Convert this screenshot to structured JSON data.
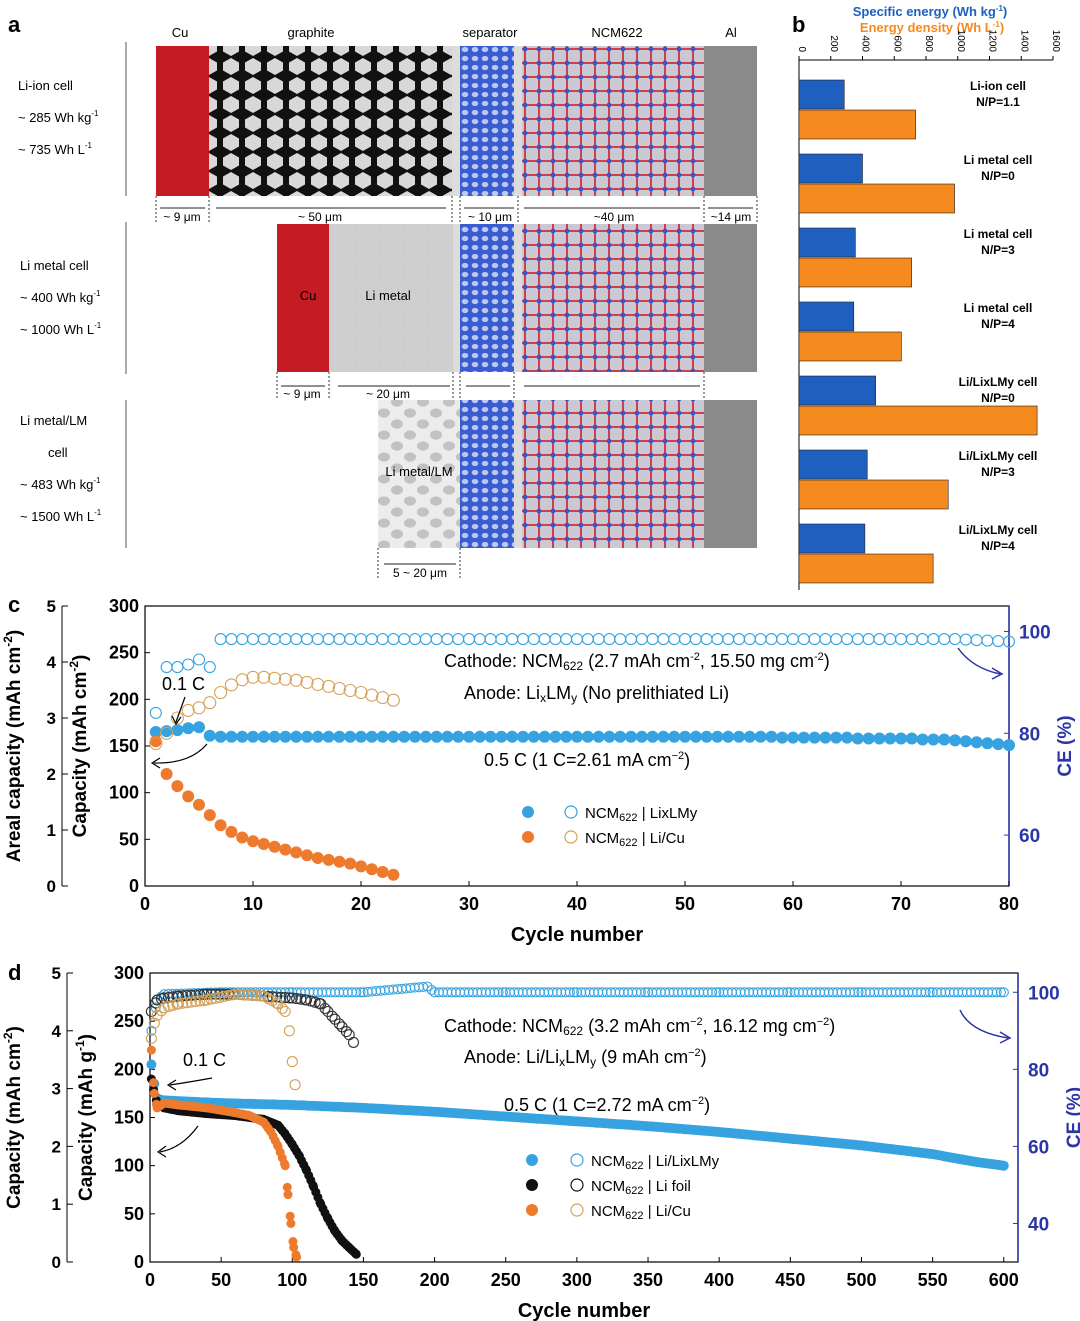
{
  "panels": {
    "a": "a",
    "b": "b",
    "c": "c",
    "d": "d"
  },
  "colors": {
    "blue": "#1f5fbf",
    "orange": "#f58a1f",
    "light_blue": "#36a3e0",
    "c_orange": "#ee7a2e",
    "tan": "#d4a057",
    "black": "#111111",
    "ce_axis": "#2a35a8",
    "cu_red": "#c51b23",
    "al_gray": "#8a8a8a",
    "li_gray": "#cfcfcf"
  },
  "schematic": {
    "layer_labels": {
      "cu": "Cu",
      "graphite": "graphite",
      "separator": "separator",
      "ncm": "NCM622",
      "al": "Al"
    },
    "cells": [
      {
        "name": "Li-ion cell",
        "energy": "~ 285 Wh kg",
        "energy_sup": "-1",
        "density": "~ 735 Wh L",
        "density_sup": "-1"
      },
      {
        "name": "Li metal cell",
        "energy": "~ 400 Wh kg",
        "energy_sup": "-1",
        "density": "~ 1000 Wh L",
        "density_sup": "-1"
      },
      {
        "name": "Li metal/LM",
        "name2": "cell",
        "energy": "~ 483 Wh kg",
        "energy_sup": "-1",
        "density": "~ 1500 Wh L",
        "density_sup": "-1"
      }
    ],
    "dims_row1": [
      "~ 9 μm",
      "~ 50 μm",
      "~ 10 μm",
      "~40 μm",
      "~14 μm"
    ],
    "dims_row2": [
      "~ 9 μm",
      "~ 20 μm"
    ],
    "dims_row3": [
      "5 ~ 20 μm"
    ],
    "inner_labels": {
      "cu": "Cu",
      "li_metal": "Li metal",
      "li_metal_lm": "Li metal/LM"
    }
  },
  "chart_data": [
    {
      "panel": "b",
      "type": "bar",
      "orientation": "horizontal",
      "legend": {
        "specific": "Specific energy (Wh kg",
        "specific_sup": "-1",
        "density": "Energy density (Wh L",
        "density_sup": "-1"
      },
      "ticks": [
        "0",
        "200",
        "400",
        "600",
        "800",
        "1000",
        "1200",
        "1400",
        "1600"
      ],
      "xlim": [
        0,
        1600
      ],
      "categories": [
        {
          "l1": "Li-ion cell",
          "l2": "N/P=1.1"
        },
        {
          "l1": "Li metal cell",
          "l2": "N/P=0"
        },
        {
          "l1": "Li metal cell",
          "l2": "N/P=3"
        },
        {
          "l1": "Li metal cell",
          "l2": "N/P=4"
        },
        {
          "l1": "Li/LixLMy cell",
          "l2": "N/P=0"
        },
        {
          "l1": "Li/LixLMy cell",
          "l2": "N/P=3"
        },
        {
          "l1": "Li/LixLMy cell",
          "l2": "N/P=4"
        }
      ],
      "series": [
        {
          "name": "Specific energy (Wh kg-1)",
          "values": [
            285,
            400,
            355,
            345,
            483,
            430,
            415
          ]
        },
        {
          "name": "Energy density (Wh L-1)",
          "values": [
            735,
            980,
            710,
            645,
            1500,
            940,
            845
          ]
        }
      ]
    },
    {
      "panel": "c",
      "type": "scatter",
      "xlabel": "Cycle number",
      "ylabel_left": "Capacity (mAh cm",
      "ylabel_left_sup": "-2",
      "ylabel_left_suffix": ")",
      "ylabel_areal": "Areal capacity (mAh cm",
      "ylabel_areal_sup": "-2",
      "ylabel_areal_suffix": ")",
      "ylabel_right": "CE (%)",
      "xlim": [
        0,
        80
      ],
      "ylim": [
        0,
        300
      ],
      "areal_lim": [
        0,
        5
      ],
      "ce_lim": [
        50,
        105
      ],
      "xticks": [
        "0",
        "10",
        "20",
        "30",
        "40",
        "50",
        "60",
        "70",
        "80"
      ],
      "yticks": [
        "0",
        "50",
        "100",
        "150",
        "200",
        "250",
        "300"
      ],
      "areal_ticks": [
        "0",
        "1",
        "2",
        "3",
        "4",
        "5"
      ],
      "ce_ticks": [
        "60",
        "80",
        "100"
      ],
      "annotations": {
        "cathode": "Cathode: NCM",
        "cathode_sub": "622",
        "cathode_tail": " (2.7 mAh cm",
        "cathode_sup": "-2",
        "cathode_tail2": ", 15.50 mg cm",
        "cathode_sup2": "-2",
        "cathode_end": ")",
        "anode": "Anode: Li",
        "anode_x": "x",
        "anode_mid": "LM",
        "anode_y": "y",
        "anode_end": " (No prelithiated Li)",
        "rate_low": "0.1 C",
        "rate_high": "0.5 C (1 C=2.61 mA cm",
        "rate_high_sup": "−2",
        "rate_high_end": ")"
      },
      "legend": [
        {
          "label": "NCM622 | LixLMy",
          "pre": "NCM",
          "sub": "622",
          "post": " | LixLMy"
        },
        {
          "label": "NCM622 | Li/Cu",
          "pre": "NCM",
          "sub": "622",
          "post": " | Li/Cu"
        }
      ],
      "series": [
        {
          "name": "NCM622 | LixLMy capacity",
          "x": [
            1,
            2,
            3,
            4,
            5,
            6,
            7,
            8,
            9,
            10,
            11,
            12,
            13,
            14,
            15,
            16,
            17,
            18,
            19,
            20,
            21,
            22,
            23,
            24,
            25,
            26,
            27,
            28,
            29,
            30,
            31,
            32,
            33,
            34,
            35,
            36,
            37,
            38,
            39,
            40,
            41,
            42,
            43,
            44,
            45,
            46,
            47,
            48,
            49,
            50,
            51,
            52,
            53,
            54,
            55,
            56,
            57,
            58,
            59,
            60,
            61,
            62,
            63,
            64,
            65,
            66,
            67,
            68,
            69,
            70,
            71,
            72,
            73,
            74,
            75,
            76,
            77,
            78,
            79,
            80
          ],
          "y": [
            165,
            166,
            167,
            169,
            170,
            161,
            160,
            160,
            160,
            160,
            160,
            160,
            160,
            160,
            160,
            160,
            160,
            160,
            160,
            160,
            160,
            160,
            160,
            160,
            160,
            160,
            160,
            160,
            160,
            160,
            160,
            160,
            160,
            160,
            160,
            160,
            160,
            160,
            160,
            160,
            160,
            160,
            160,
            160,
            160,
            160,
            160,
            160,
            160,
            160,
            160,
            160,
            160,
            160,
            160,
            160,
            160,
            160,
            159,
            159,
            159,
            159,
            159,
            159,
            159,
            158,
            158,
            158,
            158,
            158,
            158,
            157,
            157,
            157,
            156,
            155,
            154,
            153,
            152,
            151
          ]
        },
        {
          "name": "NCM622 | LixLMy CE",
          "x": [
            1,
            2,
            3,
            4,
            5,
            6,
            7,
            8,
            9,
            10,
            11,
            12,
            13,
            14,
            15,
            16,
            17,
            18,
            19,
            20,
            21,
            22,
            23,
            24,
            25,
            26,
            27,
            28,
            29,
            30,
            31,
            32,
            33,
            34,
            35,
            36,
            37,
            38,
            39,
            40,
            41,
            42,
            43,
            44,
            45,
            46,
            47,
            48,
            49,
            50,
            51,
            52,
            53,
            54,
            55,
            56,
            57,
            58,
            59,
            60,
            61,
            62,
            63,
            64,
            65,
            66,
            67,
            68,
            69,
            70,
            71,
            72,
            73,
            74,
            75,
            76,
            77,
            78,
            79,
            80
          ],
          "y": [
            84,
            93,
            93,
            93.5,
            94.5,
            93,
            98.5,
            98.5,
            98.5,
            98.5,
            98.5,
            98.5,
            98.5,
            98.5,
            98.5,
            98.5,
            98.5,
            98.5,
            98.5,
            98.5,
            98.5,
            98.5,
            98.5,
            98.5,
            98.5,
            98.5,
            98.5,
            98.5,
            98.5,
            98.5,
            98.5,
            98.5,
            98.5,
            98.5,
            98.5,
            98.5,
            98.5,
            98.5,
            98.5,
            98.5,
            98.5,
            98.5,
            98.5,
            98.5,
            98.5,
            98.5,
            98.5,
            98.5,
            98.5,
            98.5,
            98.5,
            98.5,
            98.5,
            98.5,
            98.5,
            98.5,
            98.5,
            98.5,
            98.5,
            98.5,
            98.5,
            98.5,
            98.5,
            98.5,
            98.5,
            98.5,
            98.5,
            98.5,
            98.5,
            98.5,
            98.5,
            98.5,
            98.5,
            98.5,
            98.5,
            98.4,
            98.3,
            98.2,
            98.1,
            98
          ]
        },
        {
          "name": "NCM622 | Li/Cu capacity",
          "x": [
            1,
            2,
            3,
            4,
            5,
            6,
            7,
            8,
            9,
            10,
            11,
            12,
            13,
            14,
            15,
            16,
            17,
            18,
            19,
            20,
            21,
            22,
            23
          ],
          "y": [
            155,
            120,
            107,
            96,
            87,
            76,
            65,
            58,
            52,
            48,
            45,
            42,
            39,
            36,
            33,
            30,
            28,
            26,
            24,
            21,
            18,
            15,
            12
          ]
        },
        {
          "name": "NCM622 | Li/Cu CE",
          "x": [
            1,
            2,
            3,
            4,
            5,
            6,
            7,
            8,
            9,
            10,
            11,
            12,
            13,
            14,
            15,
            16,
            17,
            18,
            19,
            20,
            21,
            22,
            23
          ],
          "y": [
            78,
            80,
            83,
            84.5,
            85,
            86,
            88,
            89.5,
            90.5,
            91,
            91,
            90.8,
            90.6,
            90.4,
            90,
            89.6,
            89.2,
            88.8,
            88.4,
            88,
            87.5,
            87,
            86.5
          ]
        }
      ]
    },
    {
      "panel": "d",
      "type": "scatter",
      "xlabel": "Cycle number",
      "ylabel_left": "Capacity (mAh g",
      "ylabel_left_sup": "-1",
      "ylabel_left_suffix": ")",
      "ylabel_areal": "Capacity (mAh cm",
      "ylabel_areal_sup": "-2",
      "ylabel_areal_suffix": ")",
      "ylabel_right": "CE (%)",
      "xlim": [
        0,
        610
      ],
      "ylim": [
        0,
        300
      ],
      "areal_lim": [
        0,
        5
      ],
      "ce_lim": [
        30,
        105
      ],
      "xticks": [
        "0",
        "50",
        "100",
        "150",
        "200",
        "250",
        "300",
        "350",
        "400",
        "450",
        "500",
        "550",
        "600"
      ],
      "yticks": [
        "0",
        "50",
        "100",
        "150",
        "200",
        "250",
        "300"
      ],
      "areal_ticks": [
        "0",
        "1",
        "2",
        "3",
        "4",
        "5"
      ],
      "ce_ticks": [
        "40",
        "60",
        "80",
        "100"
      ],
      "annotations": {
        "cathode": "Cathode: NCM",
        "cathode_sub": "622",
        "cathode_tail": " (3.2 mAh cm",
        "cathode_sup": "−2",
        "cathode_tail2": ", 16.12 mg cm",
        "cathode_sup2": "−2",
        "cathode_end": ")",
        "anode": "Anode: Li/Li",
        "anode_x": "x",
        "anode_mid": "LM",
        "anode_y": "y",
        "anode_end": " (9 mAh cm",
        "anode_sup": "−2",
        "anode_close": ")",
        "rate_low": "0.1 C",
        "rate_high": "0.5 C (1 C=2.72 mA cm",
        "rate_high_sup": "−2",
        "rate_high_end": ")"
      },
      "legend": [
        {
          "label": "NCM622 | Li/LixLMy",
          "pre": "NCM",
          "sub": "622",
          "post": " | Li/LixLMy"
        },
        {
          "label": "NCM622 | Li foil",
          "pre": "NCM",
          "sub": "622",
          "post": " | Li foil"
        },
        {
          "label": "NCM622 | Li/Cu",
          "pre": "NCM",
          "sub": "622",
          "post": " | Li/Cu"
        }
      ],
      "series": [
        {
          "name": "NCM622 | Li/LixLMy capacity",
          "x": [
            1,
            3,
            5,
            8,
            20,
            50,
            100,
            150,
            200,
            250,
            300,
            350,
            400,
            450,
            500,
            550,
            580,
            600
          ],
          "y": [
            205,
            185,
            170,
            168,
            167,
            165,
            163,
            160,
            156,
            151,
            146,
            141,
            135,
            128,
            121,
            112,
            104,
            100
          ]
        },
        {
          "name": "NCM622 | Li/LixLMy CE",
          "x": [
            1,
            5,
            10,
            50,
            100,
            150,
            195,
            200,
            250,
            300,
            350,
            400,
            450,
            500,
            550,
            600
          ],
          "y": [
            90,
            98,
            99.5,
            100,
            100,
            100,
            101.5,
            100,
            100,
            100,
            100,
            100,
            100,
            100,
            100,
            100
          ]
        },
        {
          "name": "NCM622 | Li foil capacity",
          "x": [
            1,
            3,
            5,
            10,
            20,
            40,
            60,
            80,
            90,
            95,
            100,
            105,
            110,
            115,
            120,
            125,
            130,
            135,
            140,
            145
          ],
          "y": [
            190,
            175,
            165,
            160,
            157,
            154,
            152,
            148,
            142,
            133,
            122,
            110,
            95,
            78,
            60,
            45,
            32,
            22,
            15,
            8
          ]
        },
        {
          "name": "NCM622 | Li foil CE",
          "x": [
            1,
            5,
            10,
            20,
            40,
            60,
            80,
            100,
            110,
            120,
            125,
            130,
            135,
            140,
            143
          ],
          "y": [
            95,
            98,
            98.5,
            99,
            99.5,
            99.5,
            99,
            98.5,
            98,
            97,
            95,
            93,
            91,
            89,
            87
          ]
        },
        {
          "name": "NCM622 | Li/Cu capacity",
          "x": [
            1,
            3,
            5,
            10,
            20,
            40,
            60,
            70,
            80,
            85,
            90,
            95,
            97,
            99,
            101,
            103
          ],
          "y": [
            220,
            175,
            160,
            165,
            163,
            160,
            155,
            152,
            145,
            135,
            120,
            100,
            70,
            40,
            15,
            5
          ]
        },
        {
          "name": "NCM622 | Li/Cu CE",
          "x": [
            1,
            3,
            5,
            10,
            20,
            40,
            60,
            80,
            90,
            95,
            98,
            100,
            102
          ],
          "y": [
            88,
            92,
            94,
            96,
            97,
            98,
            99.5,
            99,
            97,
            95,
            90,
            82,
            76
          ]
        }
      ]
    }
  ]
}
